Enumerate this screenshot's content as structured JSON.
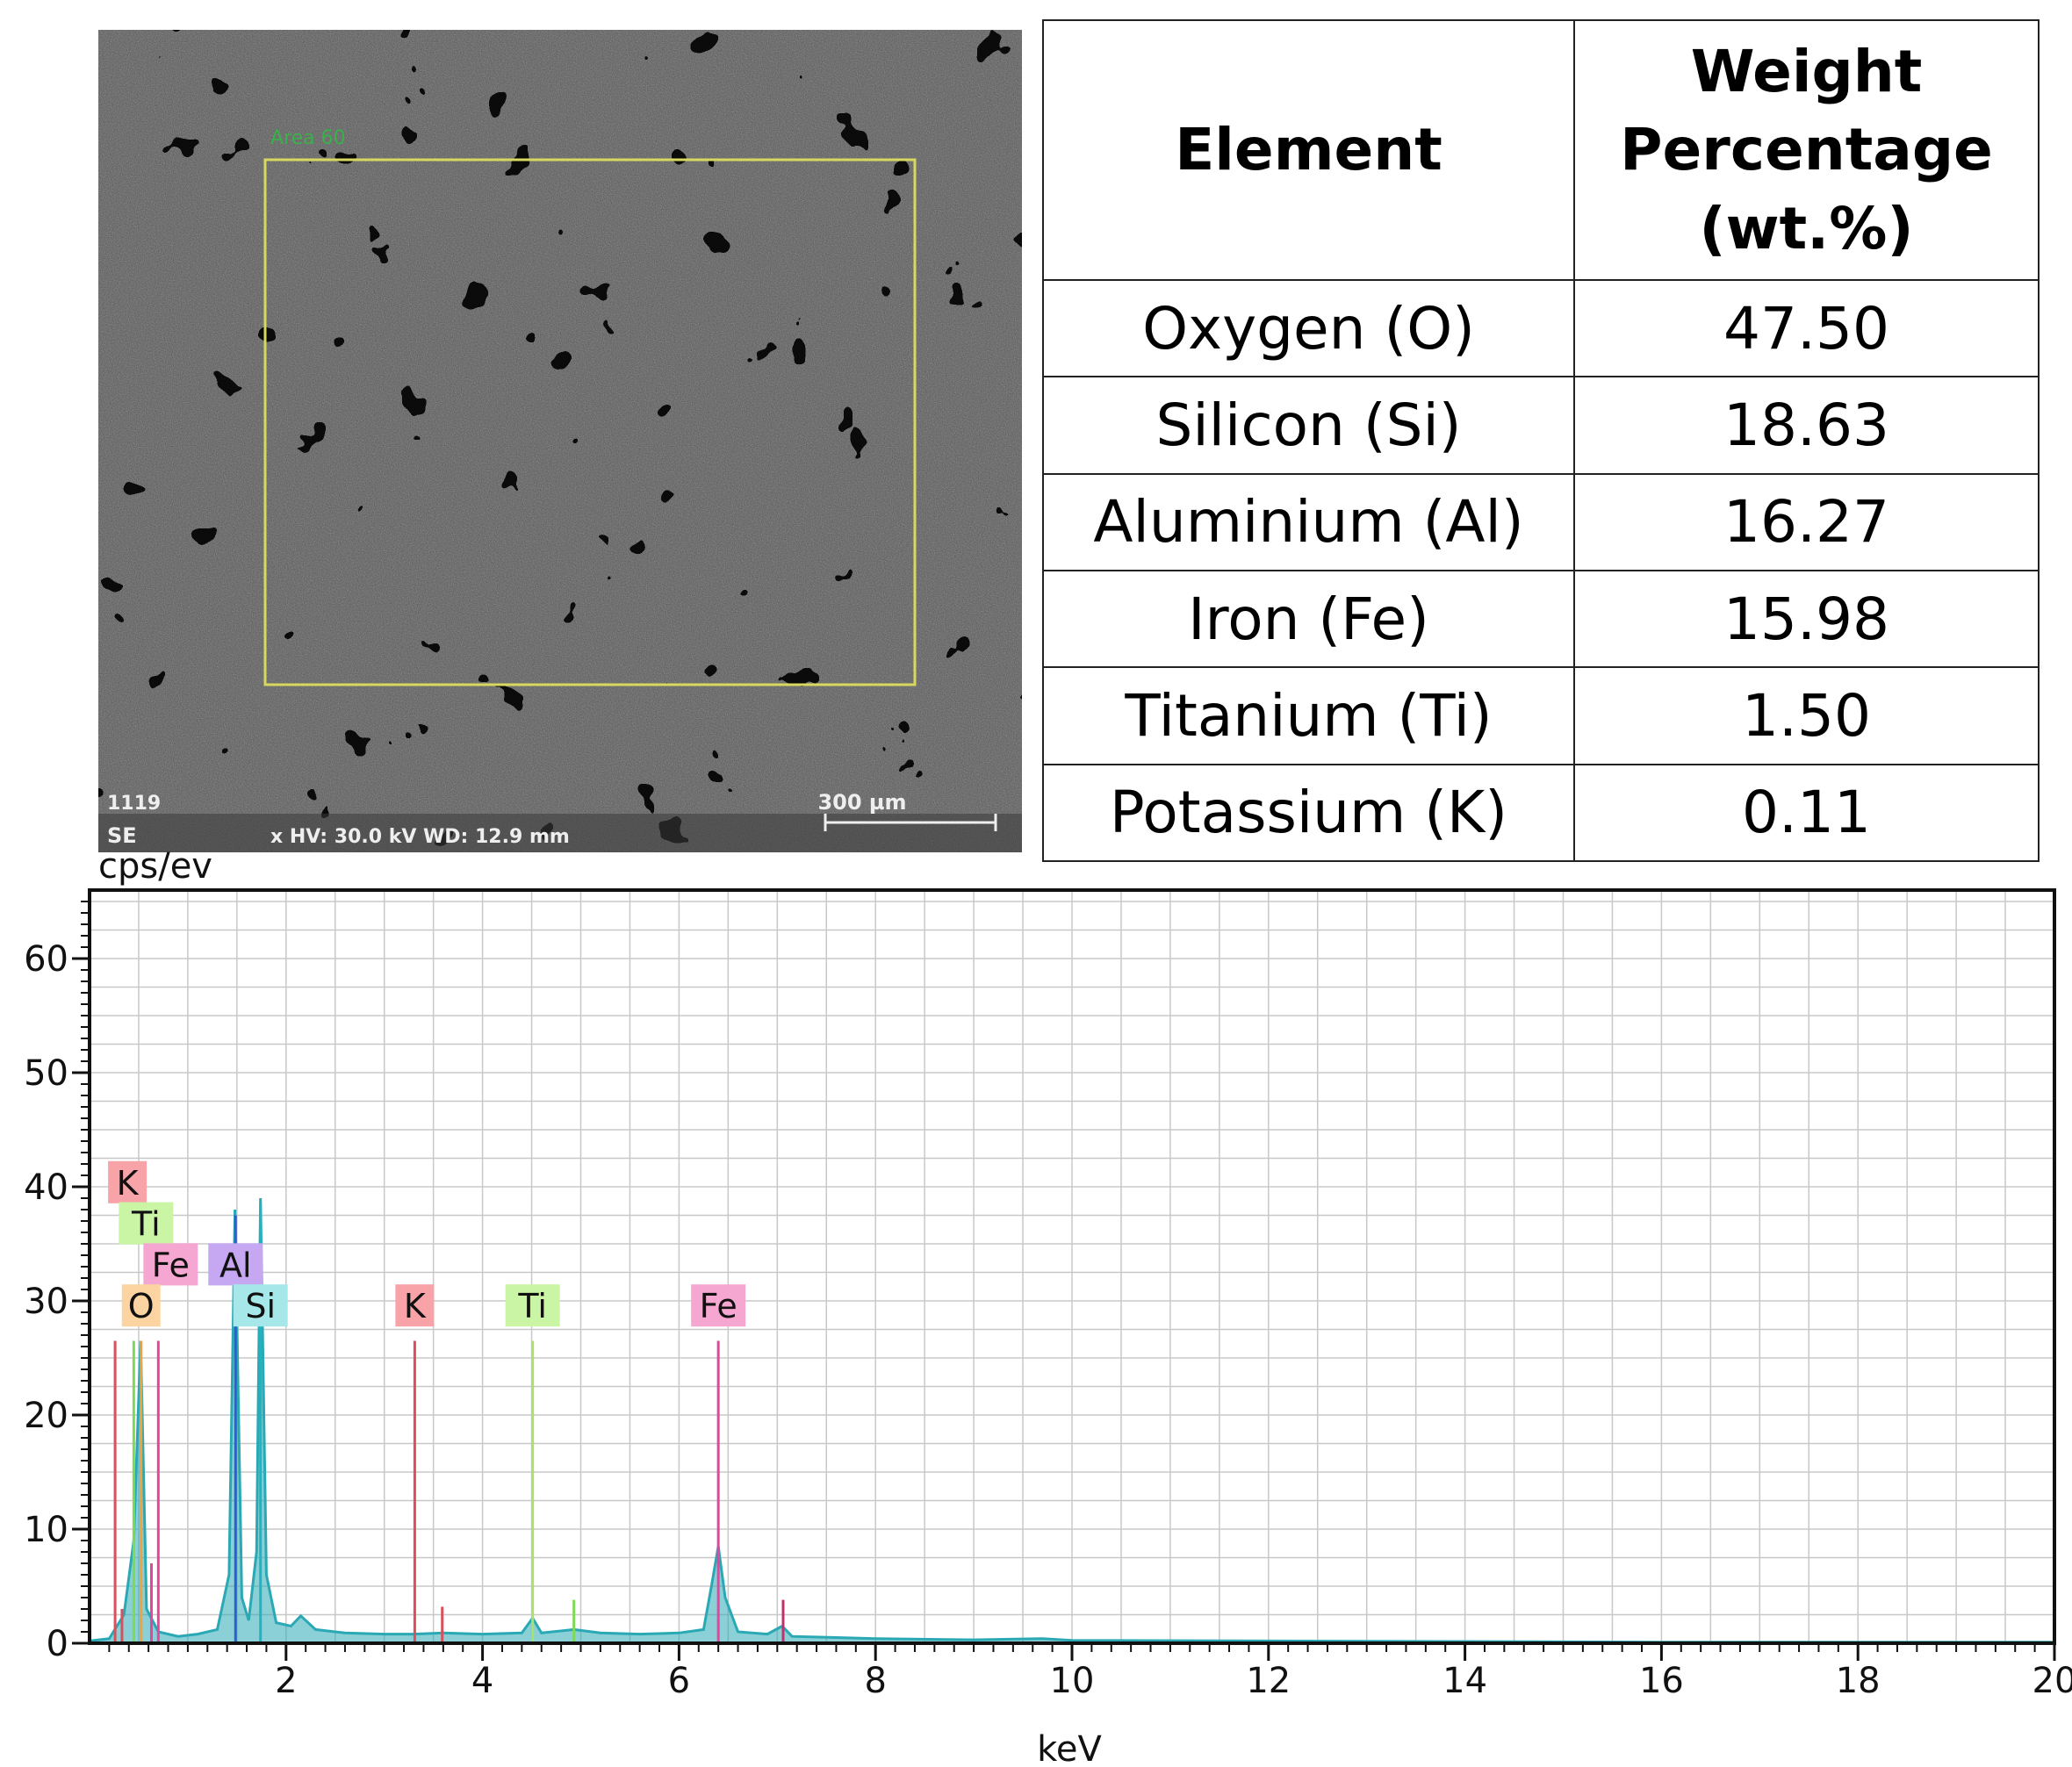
{
  "table": {
    "headers": [
      "Element",
      "Weight Percentage (wt.%)"
    ],
    "header_lines": [
      "Weight",
      "Percentage",
      "(wt.%)"
    ],
    "rows": [
      [
        "Oxygen (O)",
        "47.50"
      ],
      [
        "Silicon (Si)",
        "18.63"
      ],
      [
        "Aluminium (Al)",
        "16.27"
      ],
      [
        "Iron (Fe)",
        "15.98"
      ],
      [
        "Titanium (Ti)",
        "1.50"
      ],
      [
        "Potassium (K)",
        "0.11"
      ]
    ]
  },
  "sem_image": {
    "area_label": "Area 60",
    "mag_text": "1119",
    "detector_text": "SE",
    "info_text": "x  HV: 30.0 kV   WD: 12.9 mm",
    "scale_bar": "300 µm"
  },
  "chart_data": {
    "type": "line",
    "ylabel": "cps/ev",
    "xlabel": "keV",
    "xlim": [
      0,
      20
    ],
    "ylim": [
      0,
      66
    ],
    "xticks": [
      2,
      4,
      6,
      8,
      10,
      12,
      14,
      16,
      18,
      20
    ],
    "yticks": [
      0,
      10,
      20,
      30,
      40,
      50,
      60
    ],
    "grid": true,
    "series": [
      {
        "color": "#2aa9b5",
        "points": [
          [
            0.0,
            0.2
          ],
          [
            0.2,
            0.4
          ],
          [
            0.35,
            2.5
          ],
          [
            0.45,
            9.0
          ],
          [
            0.52,
            26.5
          ],
          [
            0.58,
            3.0
          ],
          [
            0.7,
            1.0
          ],
          [
            0.9,
            0.6
          ],
          [
            1.1,
            0.8
          ],
          [
            1.3,
            1.2
          ],
          [
            1.42,
            6.0
          ],
          [
            1.48,
            38.0
          ],
          [
            1.55,
            4.0
          ],
          [
            1.62,
            2.0
          ],
          [
            1.7,
            8.0
          ],
          [
            1.74,
            39.0
          ],
          [
            1.8,
            6.0
          ],
          [
            1.9,
            1.8
          ],
          [
            2.05,
            1.5
          ],
          [
            2.15,
            2.4
          ],
          [
            2.3,
            1.2
          ],
          [
            2.6,
            0.9
          ],
          [
            3.0,
            0.8
          ],
          [
            3.3,
            0.8
          ],
          [
            3.6,
            0.9
          ],
          [
            4.0,
            0.8
          ],
          [
            4.4,
            0.9
          ],
          [
            4.51,
            2.2
          ],
          [
            4.6,
            0.9
          ],
          [
            4.93,
            1.2
          ],
          [
            5.2,
            0.9
          ],
          [
            5.6,
            0.8
          ],
          [
            6.0,
            0.9
          ],
          [
            6.25,
            1.2
          ],
          [
            6.33,
            5.0
          ],
          [
            6.4,
            8.5
          ],
          [
            6.47,
            4.0
          ],
          [
            6.6,
            1.0
          ],
          [
            6.9,
            0.8
          ],
          [
            7.05,
            1.5
          ],
          [
            7.15,
            0.6
          ],
          [
            7.6,
            0.5
          ],
          [
            8.0,
            0.4
          ],
          [
            9.0,
            0.3
          ],
          [
            9.7,
            0.4
          ],
          [
            10.0,
            0.25
          ],
          [
            12.0,
            0.2
          ],
          [
            14.0,
            0.15
          ],
          [
            16.0,
            0.1
          ],
          [
            18.0,
            0.1
          ],
          [
            20.0,
            0.1
          ]
        ]
      }
    ],
    "peaks": [
      {
        "element": "K",
        "energy": 0.26,
        "height": 26.5,
        "color": "#d94f5c",
        "label_color": "#f7a3a8"
      },
      {
        "element": "Ti",
        "energy": 0.45,
        "height": 26.5,
        "color": "#7ed957",
        "label_color": "#c9f5a5"
      },
      {
        "element": "O",
        "energy": 0.525,
        "height": 26.5,
        "color": "#f0a23c",
        "label_color": "#fcd4a1"
      },
      {
        "element": "Fe",
        "energy": 0.7,
        "height": 26.5,
        "color": "#e0479e",
        "label_color": "#f5a6d1"
      },
      {
        "element": "Al",
        "energy": 1.486,
        "height": 37.5,
        "color": "#2a5fd6",
        "label_color": "#c6a8f2"
      },
      {
        "element": "Si",
        "energy": 1.74,
        "height": 38.5,
        "color": "#1fb3c4",
        "label_color": "#a6e8ea"
      },
      {
        "element": "K",
        "energy": 3.31,
        "height": 26.5,
        "color": "#d94f5c",
        "label_color": "#f7a3a8"
      },
      {
        "element": "Ti",
        "energy": 4.51,
        "height": 26.5,
        "color": "#a7e36a",
        "label_color": "#c9f5a5"
      },
      {
        "element": "Fe",
        "energy": 6.4,
        "height": 26.5,
        "color": "#e0479e",
        "label_color": "#f5a6d1"
      }
    ],
    "minor_lines": [
      {
        "energy": 0.33,
        "height": 3.0,
        "color": "#d94f5c"
      },
      {
        "energy": 0.63,
        "height": 7.0,
        "color": "#e0479e"
      },
      {
        "energy": 3.59,
        "height": 3.2,
        "color": "#d94f5c"
      },
      {
        "energy": 4.93,
        "height": 3.8,
        "color": "#7ed957"
      },
      {
        "energy": 7.06,
        "height": 3.8,
        "color": "#c0306a"
      }
    ],
    "label_stack": [
      {
        "element": "K",
        "color": "#f7a3a8",
        "level": 4
      },
      {
        "element": "Ti",
        "color": "#c9f5a5",
        "level": 3
      },
      {
        "element": "Fe",
        "color": "#f5a6d1",
        "level": 2
      },
      {
        "element": "Al",
        "color": "#c6a8f2",
        "level": 2
      },
      {
        "element": "O",
        "color": "#fcd4a1",
        "level": 1
      },
      {
        "element": "Si",
        "color": "#a6e8ea",
        "level": 1
      },
      {
        "element": "K",
        "color": "#f7a3a8",
        "level": 1
      },
      {
        "element": "Ti",
        "color": "#c9f5a5",
        "level": 1
      },
      {
        "element": "Fe",
        "color": "#f5a6d1",
        "level": 1
      }
    ]
  }
}
